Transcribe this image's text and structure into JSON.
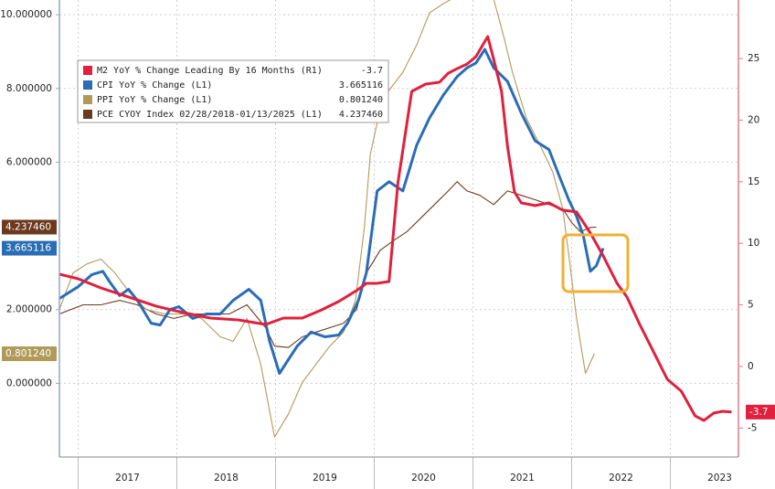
{
  "chart_data": {
    "type": "line",
    "xlim": [
      2016.81,
      2023.69
    ],
    "xticks": [
      {
        "value": 2017,
        "label": "2017"
      },
      {
        "value": 2018,
        "label": "2018"
      },
      {
        "value": 2019,
        "label": "2019"
      },
      {
        "value": 2020,
        "label": "2020"
      },
      {
        "value": 2021,
        "label": "2021"
      },
      {
        "value": 2022,
        "label": "2022"
      },
      {
        "value": 2023,
        "label": "2023"
      }
    ],
    "ylim": [
      -2,
      10.4
    ],
    "yticks": [
      {
        "value": 0,
        "label": "0.000000"
      },
      {
        "value": 2,
        "label": "2.000000"
      },
      {
        "value": 6,
        "label": "6.000000"
      },
      {
        "value": 8,
        "label": "8.000000"
      },
      {
        "value": 10,
        "label": "10.000000"
      }
    ],
    "y2lim": [
      -7.35,
      29.75
    ],
    "y2ticks": [
      -5,
      0,
      5,
      10,
      15,
      20,
      25
    ],
    "grid": true,
    "series": [
      {
        "name": "M2 YoY % Change Leading By 16 Months (R1)",
        "color": "#e0203d",
        "axis": "y2",
        "x": [
          2016.81,
          2017.0,
          2017.23,
          2017.51,
          2017.79,
          2018.06,
          2018.34,
          2018.62,
          2018.9,
          2019.08,
          2019.27,
          2019.45,
          2019.64,
          2019.82,
          2019.92,
          2020.03,
          2020.15,
          2020.24,
          2020.38,
          2020.52,
          2020.66,
          2020.75,
          2020.84,
          2020.94,
          2021.03,
          2021.15,
          2021.21,
          2021.29,
          2021.35,
          2021.42,
          2021.49,
          2021.63,
          2021.77,
          2021.91,
          2022.05,
          2022.19,
          2022.32,
          2022.46,
          2022.56,
          2022.69,
          2022.83,
          2022.97,
          2023.11,
          2023.25,
          2023.34,
          2023.44,
          2023.53,
          2023.62
        ],
        "values": [
          7.49,
          7.12,
          6.38,
          5.64,
          4.9,
          4.38,
          3.93,
          3.78,
          3.41,
          3.93,
          3.93,
          4.53,
          5.27,
          6.16,
          6.75,
          6.75,
          6.9,
          14.91,
          22.33,
          22.92,
          23.07,
          23.81,
          24.18,
          24.55,
          25.15,
          26.78,
          24.93,
          22.33,
          17.88,
          14.17,
          13.28,
          13.06,
          13.28,
          12.69,
          12.54,
          10.83,
          8.98,
          6.75,
          5.64,
          3.41,
          1.19,
          -1.04,
          -2.0,
          -4.0,
          -4.38,
          -3.78,
          -3.64,
          -3.7
        ]
      },
      {
        "name": "CPI YoY % Change (L1)",
        "color": "#2a6db5",
        "axis": "y",
        "x": [
          2016.81,
          2017.0,
          2017.14,
          2017.25,
          2017.32,
          2017.42,
          2017.51,
          2017.6,
          2017.74,
          2017.83,
          2017.93,
          2018.02,
          2018.16,
          2018.3,
          2018.44,
          2018.57,
          2018.73,
          2018.85,
          2018.94,
          2019.04,
          2019.13,
          2019.22,
          2019.36,
          2019.5,
          2019.64,
          2019.73,
          2019.84,
          2019.92,
          2020.03,
          2020.15,
          2020.29,
          2020.43,
          2020.56,
          2020.7,
          2020.84,
          2020.94,
          2021.03,
          2021.12,
          2021.21,
          2021.35,
          2021.49,
          2021.63,
          2021.77,
          2021.88,
          2021.97,
          2022.05,
          2022.12,
          2022.19,
          2022.25,
          2022.32
        ],
        "values": [
          2.3,
          2.62,
          2.95,
          3.04,
          2.75,
          2.38,
          2.55,
          2.25,
          1.63,
          1.58,
          2.0,
          2.08,
          1.76,
          1.88,
          1.88,
          2.25,
          2.55,
          2.25,
          1.14,
          0.27,
          0.64,
          1.01,
          1.39,
          1.26,
          1.31,
          1.63,
          2.25,
          3.0,
          5.22,
          5.47,
          5.22,
          6.46,
          7.2,
          7.82,
          8.32,
          8.56,
          8.69,
          9.06,
          8.56,
          8.19,
          7.33,
          6.58,
          6.34,
          5.59,
          4.98,
          4.53,
          3.99,
          3.04,
          3.19,
          3.665116
        ]
      },
      {
        "name": "PPI YoY % Change (L1)",
        "color": "#b09a5a",
        "axis": "y",
        "x": [
          2016.81,
          2016.95,
          2017.09,
          2017.23,
          2017.37,
          2017.51,
          2017.69,
          2017.88,
          2018.06,
          2018.25,
          2018.44,
          2018.57,
          2018.71,
          2018.85,
          2018.99,
          2019.13,
          2019.27,
          2019.41,
          2019.55,
          2019.69,
          2019.81,
          2019.9,
          2019.96,
          2020.06,
          2020.15,
          2020.29,
          2020.43,
          2020.56,
          2020.7,
          2020.8,
          2021.01,
          2021.21,
          2021.31,
          2021.4,
          2021.54,
          2021.68,
          2021.81,
          2021.91,
          2021.97,
          2022.05,
          2022.14,
          2022.23
        ],
        "values": [
          2.0,
          3.0,
          3.24,
          3.37,
          3.0,
          2.5,
          2.0,
          1.88,
          1.88,
          1.76,
          1.26,
          1.14,
          1.76,
          0.52,
          -1.46,
          -0.84,
          0.02,
          0.52,
          1.01,
          1.39,
          2.25,
          4.23,
          6.21,
          7.45,
          7.95,
          8.44,
          9.18,
          10.05,
          10.3,
          10.45,
          11.5,
          10.42,
          9.43,
          8.44,
          7.2,
          6.46,
          5.72,
          4.73,
          3.49,
          1.76,
          0.27,
          0.80124
        ],
        "value_labels": [
          null,
          null,
          null,
          null,
          null,
          null,
          null,
          null,
          null,
          null,
          null,
          null,
          null,
          null,
          null,
          null,
          null,
          null,
          null,
          null,
          null,
          null,
          null,
          null,
          null,
          null,
          null,
          null,
          null,
          null,
          null,
          null,
          null,
          null,
          null,
          null,
          null,
          null,
          null,
          null,
          null,
          "0.801240"
        ]
      },
      {
        "name": "PCE CYOY Index 02/28/2018-01/13/2025 (L1)",
        "color": "#6b3a1e",
        "axis": "y",
        "x": [
          2016.81,
          2017.05,
          2017.23,
          2017.42,
          2017.6,
          2017.79,
          2017.97,
          2018.16,
          2018.34,
          2018.53,
          2018.71,
          2018.9,
          2018.99,
          2019.13,
          2019.27,
          2019.41,
          2019.55,
          2019.69,
          2019.82,
          2019.92,
          2020.06,
          2020.19,
          2020.33,
          2020.47,
          2020.61,
          2020.75,
          2020.84,
          2020.94,
          2021.07,
          2021.21,
          2021.35,
          2021.49,
          2021.63,
          2021.77,
          2021.91,
          2022.0,
          2022.09,
          2022.19,
          2022.25
        ],
        "values": [
          1.88,
          2.13,
          2.13,
          2.25,
          2.13,
          1.88,
          1.76,
          1.88,
          1.88,
          1.88,
          2.13,
          1.51,
          1.01,
          0.97,
          1.26,
          1.39,
          1.51,
          1.63,
          2.0,
          3.0,
          3.61,
          3.86,
          4.11,
          4.48,
          4.85,
          5.22,
          5.47,
          5.22,
          5.1,
          4.85,
          5.22,
          5.1,
          4.98,
          4.85,
          4.73,
          4.36,
          4.11,
          4.23,
          4.23746
        ],
        "value_labels": [
          null,
          null,
          null,
          null,
          null,
          null,
          null,
          null,
          null,
          null,
          null,
          null,
          null,
          null,
          null,
          null,
          null,
          null,
          null,
          null,
          null,
          null,
          null,
          null,
          null,
          null,
          null,
          null,
          null,
          null,
          null,
          null,
          null,
          null,
          null,
          null,
          null,
          null,
          "4.237460"
        ]
      }
    ]
  }
}
